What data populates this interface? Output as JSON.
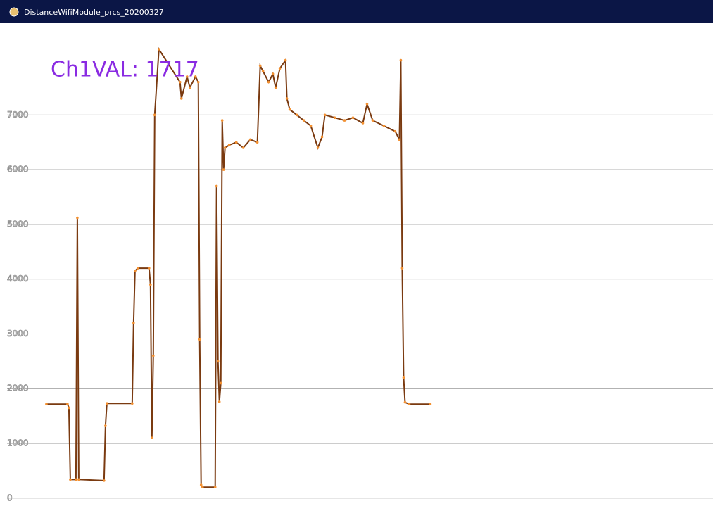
{
  "window": {
    "title": "DistanceWifiModule_prcs_20200327"
  },
  "chart_data": {
    "type": "line",
    "annotation": "Ch1VAL: 1717",
    "x": [
      0,
      15,
      16,
      17,
      21,
      22,
      23,
      41,
      42,
      43,
      61,
      62,
      63,
      65,
      73,
      74,
      75,
      76,
      77,
      80,
      95,
      96,
      100,
      102,
      106,
      108,
      109,
      110,
      111,
      120,
      121,
      122,
      123,
      124,
      125,
      126,
      127,
      130,
      135,
      140,
      145,
      150,
      152,
      154,
      158,
      161,
      163,
      166,
      170,
      171,
      173,
      178,
      183,
      188,
      193,
      196,
      198,
      205,
      212,
      218,
      225,
      228,
      232,
      240,
      248,
      251,
      252,
      253,
      254,
      255,
      258,
      273
    ],
    "series": [
      {
        "color": "#7a3a10",
        "marker_color": "#f39030",
        "values": [
          1717,
          1717,
          1650,
          340,
          340,
          5120,
          340,
          320,
          1320,
          1730,
          1730,
          3200,
          4150,
          4200,
          4200,
          3900,
          1100,
          2600,
          7000,
          8200,
          7600,
          7300,
          7700,
          7500,
          7700,
          7600,
          2900,
          240,
          200,
          200,
          5700,
          2500,
          1760,
          2100,
          6900,
          6000,
          6400,
          6450,
          6500,
          6400,
          6550,
          6500,
          7900,
          7800,
          7600,
          7750,
          7500,
          7850,
          8000,
          7300,
          7100,
          7000,
          6900,
          6800,
          6400,
          6600,
          7000,
          6950,
          6900,
          6950,
          6850,
          7200,
          6900,
          6800,
          6700,
          6550,
          8000,
          4200,
          2200,
          1750,
          1717,
          1717
        ]
      }
    ],
    "xlim": [
      -28,
      474
    ],
    "ylim": [
      -620,
      8650
    ],
    "yticks": [
      0,
      1000,
      2000,
      3000,
      4000,
      5000,
      6000,
      7000
    ],
    "grid": true
  }
}
